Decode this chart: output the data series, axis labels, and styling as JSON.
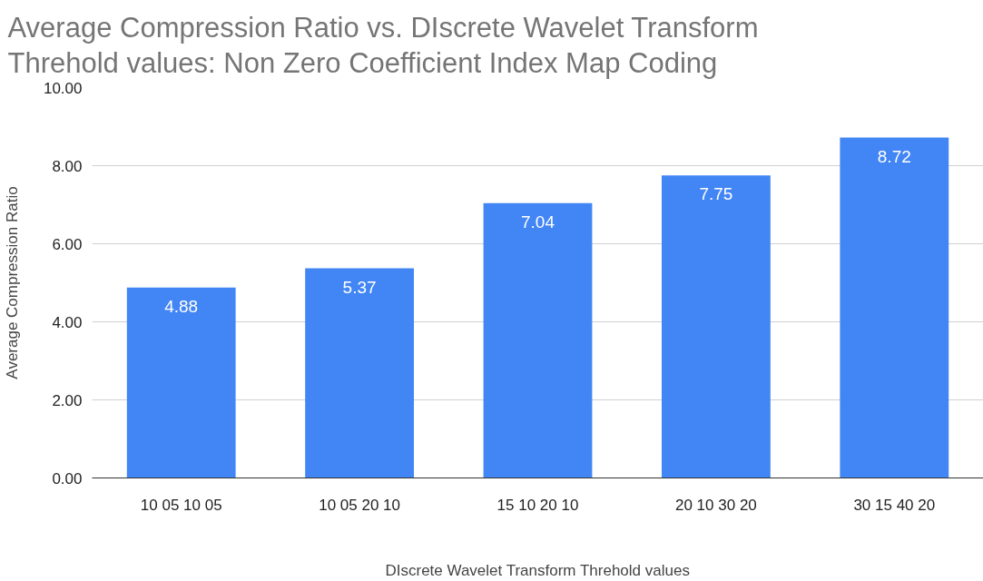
{
  "chart_data": {
    "type": "bar",
    "title": "Average Compression Ratio vs. DIscrete Wavelet Transform Threhold values: Non Zero Coefficient Index Map Coding",
    "xlabel": "DIscrete Wavelet Transform Threhold values",
    "ylabel": "Average Compression Ratio",
    "categories": [
      "10 05 10 05",
      "10 05 20 10",
      "15 10 20 10",
      "20 10 30 20",
      "30 15 40 20"
    ],
    "values": [
      4.88,
      5.37,
      7.04,
      7.75,
      8.72
    ],
    "color": "#4285f4",
    "ylim": [
      0,
      10
    ],
    "yticks": [
      {
        "value": 0,
        "label": "0.00"
      },
      {
        "value": 2,
        "label": "2.00"
      },
      {
        "value": 4,
        "label": "4.00"
      },
      {
        "value": 6,
        "label": "6.00"
      },
      {
        "value": 8,
        "label": "8.00"
      },
      {
        "value": 10,
        "label": "10.00"
      }
    ],
    "grid": "y",
    "data_labels": true
  }
}
